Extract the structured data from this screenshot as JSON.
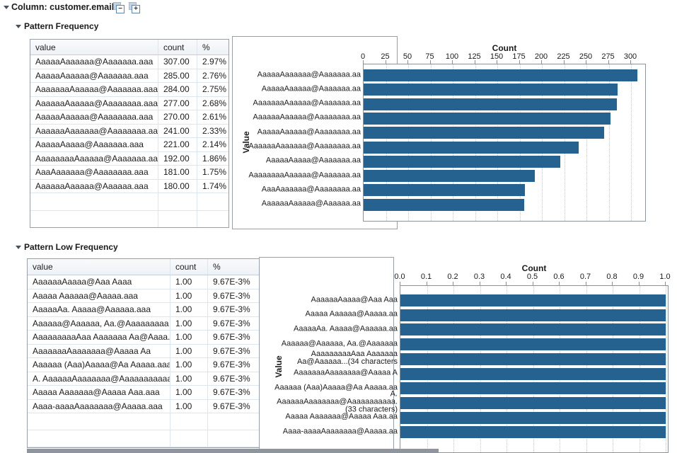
{
  "header": {
    "title": "Column: customer.email",
    "collapse_glyph": "−",
    "expand_glyph": "+"
  },
  "colors": {
    "bar": "#26628F",
    "panel_border": "#97A0A8",
    "plot_border": "#8C9499",
    "grid_line": "#C8C8C8",
    "table_line": "#DDE6EE",
    "strip": "#8E959D"
  },
  "sections": [
    {
      "title": "Pattern Frequency",
      "table": {
        "headers": [
          "value",
          "count",
          "%"
        ],
        "rows": [
          [
            "AaaaaAaaaaaa@Aaaaaaa.aaa",
            "307.00",
            "2.97%"
          ],
          [
            "AaaaaAaaaaa@Aaaaaaa.aaa",
            "285.00",
            "2.76%"
          ],
          [
            "AaaaaaaAaaaaa@Aaaaaaa.aaa",
            "284.00",
            "2.75%"
          ],
          [
            "AaaaaaAaaaaa@Aaaaaaaa.aaa",
            "277.00",
            "2.68%"
          ],
          [
            "AaaaaAaaaaa@Aaaaaaaa.aaa",
            "270.00",
            "2.61%"
          ],
          [
            "AaaaaaAaaaaaa@Aaaaaaaa.aaa",
            "241.00",
            "2.33%"
          ],
          [
            "AaaaaAaaaa@Aaaaaaa.aaa",
            "221.00",
            "2.14%"
          ],
          [
            "AaaaaaaaAaaaaa@Aaaaaaa.aaa",
            "192.00",
            "1.86%"
          ],
          [
            "AaaAaaaaaa@Aaaaaaaa.aaa",
            "181.00",
            "1.75%"
          ],
          [
            "AaaaaaAaaaaa@Aaaaaa.aaa",
            "180.00",
            "1.74%"
          ]
        ],
        "empty_row_count": 2
      },
      "chart_data": {
        "type": "bar",
        "orientation": "horizontal",
        "value_axis_title": "Count",
        "category_axis_title": "Value",
        "tick_labels": [
          "0",
          "25",
          "50",
          "75",
          "100",
          "125",
          "150",
          "175",
          "200",
          "225",
          "250",
          "275",
          "300"
        ],
        "tick_max_value": 300,
        "xlim": [
          0,
          317
        ],
        "grid": true,
        "categories": [
          [
            "AaaaaAaaaaaa@Aaaaaaa.aa"
          ],
          [
            "AaaaaAaaaaa@Aaaaaaa.aa"
          ],
          [
            "AaaaaaaAaaaaa@Aaaaaaa.aa"
          ],
          [
            "AaaaaaAaaaaa@Aaaaaaaa.aa"
          ],
          [
            "AaaaaAaaaaa@Aaaaaaaa.aa"
          ],
          [
            "AaaaaaAaaaaaa@Aaaaaaaa.aa"
          ],
          [
            "AaaaaAaaaa@Aaaaaaa.aa"
          ],
          [
            "AaaaaaaaAaaaaa@Aaaaaaa.aa"
          ],
          [
            "AaaAaaaaaa@Aaaaaaaa.aa"
          ],
          [
            "AaaaaaAaaaaa@Aaaaaa.aa"
          ]
        ],
        "values": [
          307,
          285,
          284,
          277,
          270,
          241,
          221,
          192,
          181,
          180
        ]
      }
    },
    {
      "title": "Pattern Low Frequency",
      "table": {
        "headers": [
          "value",
          "count",
          "%"
        ],
        "rows": [
          [
            "AaaaaaAaaaa@Aaa Aaaa",
            "1.00",
            "9.67E-3%"
          ],
          [
            "Aaaaa Aaaaaa@Aaaaa.aaa",
            "1.00",
            "9.67E-3%"
          ],
          [
            "AaaaaAa. Aaaaa@Aaaaaa.aaa",
            "1.00",
            "9.67E-3%"
          ],
          [
            "Aaaaaa@Aaaaaa, Aa.@Aaaaaaaaa",
            "1.00",
            "9.67E-3%"
          ],
          [
            "AaaaaaaaaAaa Aaaaaaa Aa@Aaaa...",
            "1.00",
            "9.67E-3%"
          ],
          [
            "AaaaaaaAaaaaaaa@Aaaaa Aa",
            "1.00",
            "9.67E-3%"
          ],
          [
            "Aaaaaa (Aaa)Aaaaa@Aa Aaaaa.aaa",
            "1.00",
            "9.67E-3%"
          ],
          [
            "A. AaaaaaAaaaaaaa@Aaaaaaaaaaa...",
            "1.00",
            "9.67E-3%"
          ],
          [
            "Aaaaa Aaaaaaa@Aaaaa Aaa.aaa",
            "1.00",
            "9.67E-3%"
          ],
          [
            "Aaaa-aaaaAaaaaaaa@Aaaaa.aaa",
            "1.00",
            "9.67E-3%"
          ]
        ],
        "empty_row_count": 2
      },
      "chart_data": {
        "type": "bar",
        "orientation": "horizontal",
        "value_axis_title": "Count",
        "category_axis_title": "Value",
        "tick_labels": [
          "0.0",
          "0.1",
          "0.2",
          "0.3",
          "0.4",
          "0.5",
          "0.6",
          "0.7",
          "0.8",
          "0.9",
          "1.0"
        ],
        "tick_max_value": 1.0,
        "xlim": [
          0,
          1.01
        ],
        "grid": true,
        "categories": [
          [
            "AaaaaaAaaaa@Aaa Aaa"
          ],
          [
            "Aaaaa Aaaaaa@Aaaaa.aa"
          ],
          [
            "AaaaaAa. Aaaaa@Aaaaaa.aa"
          ],
          [
            "Aaaaaa@Aaaaaa, Aa.@Aaaaaaa"
          ],
          [
            "AaaaaaaaaAaa Aaaaaaa",
            "Aa@Aaaaaa...(34 characters"
          ],
          [
            "AaaaaaaAaaaaaaa@Aaaaa A"
          ],
          [
            "Aaaaaa (Aaa)Aaaaa@Aa Aaaaa.aa"
          ],
          [
            "A.",
            "AaaaaaAaaaaaaa@Aaaaaaaaaaa.",
            "(33 characters)"
          ],
          [
            "Aaaaa Aaaaaaa@Aaaaa Aaa.aa"
          ],
          [
            "Aaaa-aaaaAaaaaaaa@Aaaaa.aa"
          ]
        ],
        "values": [
          1.0,
          1.0,
          1.0,
          1.0,
          1.0,
          1.0,
          1.0,
          1.0,
          1.0,
          1.0
        ]
      }
    }
  ]
}
